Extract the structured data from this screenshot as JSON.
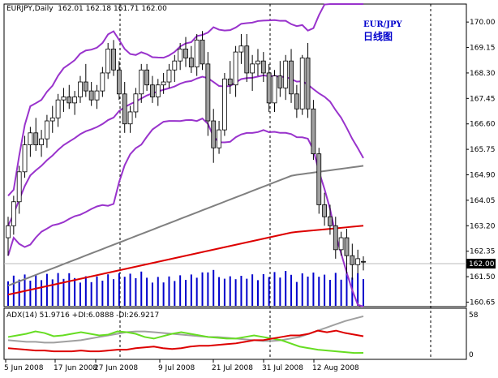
{
  "header": {
    "symbol": "EURJPY,Daily",
    "ohlc": "162.01 162.18 161.71 162.00"
  },
  "overlay": {
    "pair": "EUR/JPY",
    "caption": "日线图"
  },
  "price_axis": {
    "ticks": [
      "170.00",
      "169.15",
      "168.30",
      "167.45",
      "166.60",
      "165.75",
      "164.90",
      "164.05",
      "163.20",
      "162.35",
      "161.50",
      "160.65"
    ],
    "current": "162.00"
  },
  "indicator": {
    "label": "ADX(14) 51.9716 +DI:6.0888 -DI:26.9217",
    "scale_max": "58",
    "scale_min": "0"
  },
  "time_axis": {
    "labels": [
      "5 Jun 2008",
      "17 Jun 2008",
      "27 Jun 2008",
      "9 Jul 2008",
      "21 Jul 2008",
      "31 Jul 2008",
      "12 Aug 2008"
    ]
  },
  "colors": {
    "bollinger": "#9933cc",
    "ma_gray": "#808080",
    "ma_red": "#dd0000",
    "volume": "#0000cc",
    "adx": "#a0a0a0",
    "plus_di": "#66dd22",
    "minus_di": "#dd0000"
  },
  "chart_data": [
    {
      "type": "candlestick",
      "title": "EUR/JPY 日线图",
      "x_labels": [
        "5 Jun 2008",
        "17 Jun 2008",
        "27 Jun 2008",
        "9 Jul 2008",
        "21 Jul 2008",
        "31 Jul 2008",
        "12 Aug 2008"
      ],
      "ylim": [
        160.5,
        170.6
      ],
      "candles": [
        {
          "o": 162.8,
          "h": 163.5,
          "l": 162.2,
          "c": 163.2
        },
        {
          "o": 163.2,
          "h": 164.2,
          "l": 162.9,
          "c": 164.0
        },
        {
          "o": 164.0,
          "h": 165.2,
          "l": 163.6,
          "c": 165.0
        },
        {
          "o": 165.0,
          "h": 166.2,
          "l": 164.8,
          "c": 165.9
        },
        {
          "o": 165.9,
          "h": 166.5,
          "l": 165.5,
          "c": 166.3
        },
        {
          "o": 166.3,
          "h": 166.8,
          "l": 165.7,
          "c": 165.9
        },
        {
          "o": 165.9,
          "h": 166.4,
          "l": 165.5,
          "c": 166.1
        },
        {
          "o": 166.1,
          "h": 166.9,
          "l": 165.8,
          "c": 166.7
        },
        {
          "o": 166.7,
          "h": 167.2,
          "l": 166.3,
          "c": 166.8
        },
        {
          "o": 166.8,
          "h": 167.6,
          "l": 166.5,
          "c": 167.4
        },
        {
          "o": 167.4,
          "h": 167.8,
          "l": 167.0,
          "c": 167.5
        },
        {
          "o": 167.5,
          "h": 167.9,
          "l": 167.1,
          "c": 167.3
        },
        {
          "o": 167.3,
          "h": 167.7,
          "l": 166.9,
          "c": 167.5
        },
        {
          "o": 167.5,
          "h": 168.2,
          "l": 167.3,
          "c": 168.0
        },
        {
          "o": 168.0,
          "h": 168.6,
          "l": 167.5,
          "c": 167.7
        },
        {
          "o": 167.7,
          "h": 168.0,
          "l": 167.2,
          "c": 167.4
        },
        {
          "o": 167.4,
          "h": 167.9,
          "l": 167.1,
          "c": 167.7
        },
        {
          "o": 167.7,
          "h": 168.5,
          "l": 167.5,
          "c": 168.3
        },
        {
          "o": 168.3,
          "h": 169.3,
          "l": 168.1,
          "c": 169.1
        },
        {
          "o": 169.1,
          "h": 169.4,
          "l": 168.2,
          "c": 168.4
        },
        {
          "o": 168.4,
          "h": 168.7,
          "l": 167.4,
          "c": 167.6
        },
        {
          "o": 167.6,
          "h": 168.0,
          "l": 166.3,
          "c": 166.6
        },
        {
          "o": 166.6,
          "h": 167.2,
          "l": 166.3,
          "c": 167.0
        },
        {
          "o": 167.0,
          "h": 167.8,
          "l": 166.8,
          "c": 167.6
        },
        {
          "o": 167.6,
          "h": 168.6,
          "l": 167.3,
          "c": 168.4
        },
        {
          "o": 168.4,
          "h": 168.6,
          "l": 167.7,
          "c": 167.9
        },
        {
          "o": 167.9,
          "h": 168.2,
          "l": 167.3,
          "c": 167.5
        },
        {
          "o": 167.5,
          "h": 168.1,
          "l": 167.2,
          "c": 167.9
        },
        {
          "o": 167.9,
          "h": 168.3,
          "l": 167.6,
          "c": 168.0
        },
        {
          "o": 168.0,
          "h": 168.6,
          "l": 167.8,
          "c": 168.4
        },
        {
          "o": 168.4,
          "h": 168.9,
          "l": 168.0,
          "c": 168.7
        },
        {
          "o": 168.7,
          "h": 169.3,
          "l": 168.4,
          "c": 169.1
        },
        {
          "o": 169.1,
          "h": 169.5,
          "l": 168.5,
          "c": 168.8
        },
        {
          "o": 168.8,
          "h": 169.2,
          "l": 168.3,
          "c": 168.5
        },
        {
          "o": 168.5,
          "h": 169.6,
          "l": 168.2,
          "c": 169.4
        },
        {
          "o": 169.4,
          "h": 169.7,
          "l": 168.4,
          "c": 168.6
        },
        {
          "o": 168.6,
          "h": 169.0,
          "l": 166.2,
          "c": 166.7
        },
        {
          "o": 166.7,
          "h": 167.1,
          "l": 165.3,
          "c": 165.8
        },
        {
          "o": 165.8,
          "h": 166.7,
          "l": 165.6,
          "c": 166.4
        },
        {
          "o": 166.4,
          "h": 168.3,
          "l": 166.2,
          "c": 168.1
        },
        {
          "o": 168.1,
          "h": 168.7,
          "l": 167.6,
          "c": 167.9
        },
        {
          "o": 167.9,
          "h": 169.2,
          "l": 167.5,
          "c": 169.0
        },
        {
          "o": 169.0,
          "h": 169.6,
          "l": 168.6,
          "c": 169.2
        },
        {
          "o": 169.2,
          "h": 169.6,
          "l": 168.0,
          "c": 168.3
        },
        {
          "o": 168.3,
          "h": 168.9,
          "l": 167.7,
          "c": 168.6
        },
        {
          "o": 168.6,
          "h": 169.1,
          "l": 168.2,
          "c": 168.7
        },
        {
          "o": 168.7,
          "h": 169.0,
          "l": 168.0,
          "c": 168.3
        },
        {
          "o": 168.3,
          "h": 168.6,
          "l": 167.0,
          "c": 167.3
        },
        {
          "o": 167.3,
          "h": 168.4,
          "l": 167.0,
          "c": 168.2
        },
        {
          "o": 168.2,
          "h": 168.7,
          "l": 167.5,
          "c": 167.8
        },
        {
          "o": 167.8,
          "h": 168.9,
          "l": 167.4,
          "c": 168.7
        },
        {
          "o": 168.7,
          "h": 169.1,
          "l": 167.3,
          "c": 167.6
        },
        {
          "o": 167.6,
          "h": 167.9,
          "l": 166.8,
          "c": 167.1
        },
        {
          "o": 167.1,
          "h": 168.9,
          "l": 166.9,
          "c": 168.8
        },
        {
          "o": 168.8,
          "h": 169.3,
          "l": 166.8,
          "c": 167.1
        },
        {
          "o": 167.1,
          "h": 167.4,
          "l": 165.4,
          "c": 165.6
        },
        {
          "o": 165.6,
          "h": 165.8,
          "l": 163.6,
          "c": 163.9
        },
        {
          "o": 163.9,
          "h": 164.3,
          "l": 163.2,
          "c": 163.5
        },
        {
          "o": 163.5,
          "h": 163.9,
          "l": 162.9,
          "c": 163.2
        },
        {
          "o": 163.2,
          "h": 163.5,
          "l": 162.1,
          "c": 162.4
        },
        {
          "o": 162.4,
          "h": 163.0,
          "l": 162.2,
          "c": 162.8
        },
        {
          "o": 162.8,
          "h": 163.1,
          "l": 161.6,
          "c": 162.2
        },
        {
          "o": 162.2,
          "h": 162.6,
          "l": 161.4,
          "c": 161.9
        },
        {
          "o": 161.9,
          "h": 162.4,
          "l": 161.6,
          "c": 162.1
        },
        {
          "o": 162.01,
          "h": 162.18,
          "l": 161.71,
          "c": 162.0
        }
      ]
    },
    {
      "type": "line",
      "title": "ADX(14) 51.9716 +DI:6.0888 -DI:26.9217",
      "ylim": [
        0,
        58
      ],
      "series": [
        {
          "name": "ADX",
          "values": [
            22,
            21,
            20,
            20,
            19,
            19,
            20,
            21,
            22,
            24,
            26,
            28,
            30,
            32,
            33,
            33,
            32,
            31,
            30,
            29,
            28,
            27,
            26,
            26,
            25,
            24,
            23,
            22,
            21,
            21,
            22,
            24,
            26,
            30,
            34,
            38,
            42,
            46,
            49,
            51.97
          ]
        },
        {
          "name": "+DI",
          "values": [
            26,
            28,
            30,
            33,
            31,
            27,
            28,
            30,
            32,
            30,
            28,
            29,
            33,
            32,
            30,
            26,
            24,
            27,
            30,
            32,
            30,
            28,
            26,
            25,
            24,
            24,
            26,
            28,
            26,
            24,
            22,
            18,
            14,
            12,
            10,
            9,
            8,
            7,
            6,
            6.09
          ]
        },
        {
          "name": "-DI",
          "values": [
            12,
            11,
            10,
            9,
            9,
            8,
            8,
            8,
            9,
            8,
            8,
            9,
            10,
            10,
            12,
            13,
            14,
            12,
            11,
            12,
            14,
            15,
            15,
            16,
            17,
            18,
            20,
            22,
            22,
            24,
            26,
            28,
            28,
            30,
            34,
            32,
            34,
            31,
            29,
            26.92
          ]
        }
      ]
    }
  ]
}
